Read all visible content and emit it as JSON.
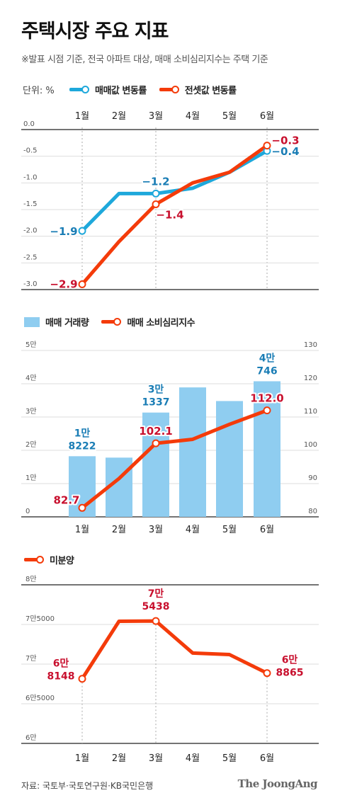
{
  "header": {
    "title": "주택시장 주요 지표",
    "note": "※발표 시점 기준, 전국 아파트 대상, 매매 소비심리지수는 주택 기준",
    "unit_label": "단위: %"
  },
  "footer": {
    "source": "자료: 국토부·국토연구원·KB국민은행",
    "brand": "The JoongAng"
  },
  "colors": {
    "blue_line": "#1ea8db",
    "red_line": "#f43b0a",
    "bar": "#8fcdf0",
    "blue_label": "#1a7db5",
    "red_label": "#c8102e",
    "grid": "#cccccc",
    "axis": "#222222"
  },
  "chart_data": [
    {
      "type": "line",
      "categories": [
        "1월",
        "2월",
        "3월",
        "4월",
        "5월",
        "6월"
      ],
      "yticks": [
        "0.0",
        "-0.5",
        "-1.0",
        "-1.5",
        "-2.0",
        "-2.5",
        "-3.0"
      ],
      "ylim": [
        -3.0,
        0.0
      ],
      "series": [
        {
          "name": "매매값 변동률",
          "values": [
            -1.9,
            -1.2,
            -1.2,
            -1.1,
            -0.8,
            -0.4
          ],
          "labels": [
            {
              "index": 0,
              "text": "−1.9"
            },
            {
              "index": 2,
              "text": "−1.2"
            },
            {
              "index": 5,
              "text": "−0.4"
            }
          ]
        },
        {
          "name": "전셋값 변동률",
          "values": [
            -2.9,
            -2.1,
            -1.4,
            -1.0,
            -0.8,
            -0.3
          ],
          "labels": [
            {
              "index": 0,
              "text": "−2.9"
            },
            {
              "index": 2,
              "text": "−1.4"
            },
            {
              "index": 5,
              "text": "−0.3"
            }
          ]
        }
      ]
    },
    {
      "type": "bar",
      "categories": [
        "1월",
        "2월",
        "3월",
        "4월",
        "5월",
        "6월"
      ],
      "yticks_left": [
        "5만",
        "4만",
        "3만",
        "2만",
        "1만",
        "0"
      ],
      "ylim_left": [
        0,
        50000
      ],
      "yticks_right": [
        "130",
        "120",
        "110",
        "100",
        "90",
        "80"
      ],
      "ylim_right": [
        80,
        130
      ],
      "series": [
        {
          "name": "매매 거래량",
          "values": [
            18222,
            17800,
            31337,
            38900,
            34800,
            40746
          ],
          "labels": [
            {
              "index": 0,
              "line1": "1만",
              "line2": "8222"
            },
            {
              "index": 2,
              "line1": "3만",
              "line2": "1337"
            },
            {
              "index": 5,
              "line1": "4만",
              "line2": "746"
            }
          ]
        },
        {
          "name": "매매 소비심리지수",
          "values": [
            82.7,
            91.5,
            102.1,
            103.3,
            107.8,
            112.0
          ],
          "labels": [
            {
              "index": 0,
              "text": "82.7"
            },
            {
              "index": 2,
              "text": "102.1"
            },
            {
              "index": 5,
              "text": "112.0"
            }
          ]
        }
      ]
    },
    {
      "type": "line",
      "categories": [
        "1월",
        "2월",
        "3월",
        "4월",
        "5월",
        "6월"
      ],
      "yticks": [
        "8만",
        "7만5000",
        "7만",
        "6만5000",
        "6만"
      ],
      "ylim": [
        60000,
        80000
      ],
      "series": [
        {
          "name": "미분양",
          "values": [
            68148,
            75400,
            75438,
            71400,
            71200,
            68865
          ],
          "labels": [
            {
              "index": 0,
              "line1": "6만",
              "line2": "8148"
            },
            {
              "index": 2,
              "line1": "7만",
              "line2": "5438"
            },
            {
              "index": 5,
              "line1": "6만",
              "line2": "8865"
            }
          ]
        }
      ]
    }
  ]
}
